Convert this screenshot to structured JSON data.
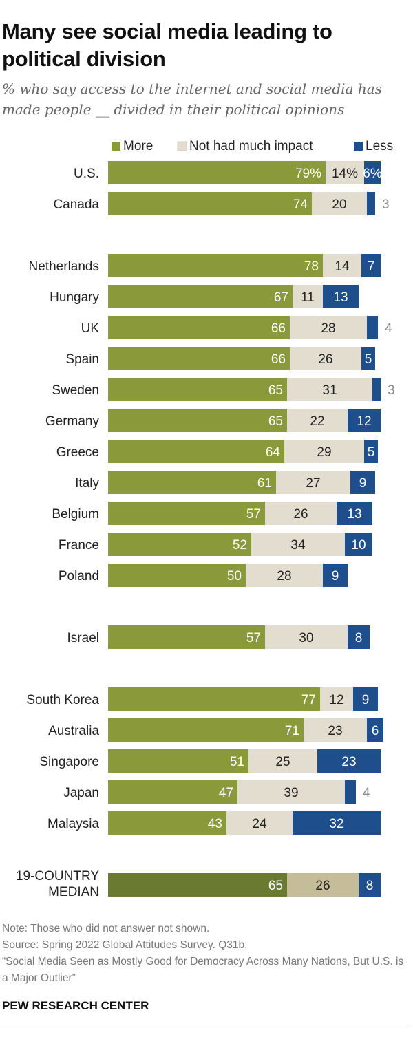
{
  "title": "Many see social media leading to political division",
  "subtitle": "% who say access to the internet and social media has made people __ divided in their political opinions",
  "chart_data": {
    "type": "bar",
    "orientation": "horizontal",
    "stacked": true,
    "xlim": [
      0,
      100
    ],
    "legend": {
      "position": "top",
      "entries": [
        "More",
        "Not had much impact",
        "Less"
      ]
    },
    "series": [
      {
        "name": "More",
        "color": "#8a9a3b"
      },
      {
        "name": "Not had much impact",
        "color": "#e3ddd0"
      },
      {
        "name": "Less",
        "color": "#1f4e8c"
      }
    ],
    "median_colors": [
      "#6b7a31",
      "#c5bd9a",
      "#1f4e8c"
    ],
    "groups": [
      [
        {
          "label": "U.S.",
          "values": [
            79,
            14,
            6
          ],
          "value_labels": [
            "79%",
            "14%",
            "6%"
          ]
        },
        {
          "label": "Canada",
          "values": [
            74,
            20,
            3
          ],
          "value_labels": [
            "74",
            "20",
            "3"
          ]
        }
      ],
      [
        {
          "label": "Netherlands",
          "values": [
            78,
            14,
            7
          ],
          "value_labels": [
            "78",
            "14",
            "7"
          ]
        },
        {
          "label": "Hungary",
          "values": [
            67,
            11,
            13
          ],
          "value_labels": [
            "67",
            "11",
            "13"
          ]
        },
        {
          "label": "UK",
          "values": [
            66,
            28,
            4
          ],
          "value_labels": [
            "66",
            "28",
            "4"
          ]
        },
        {
          "label": "Spain",
          "values": [
            66,
            26,
            5
          ],
          "value_labels": [
            "66",
            "26",
            "5"
          ]
        },
        {
          "label": "Sweden",
          "values": [
            65,
            31,
            3
          ],
          "value_labels": [
            "65",
            "31",
            "3"
          ]
        },
        {
          "label": "Germany",
          "values": [
            65,
            22,
            12
          ],
          "value_labels": [
            "65",
            "22",
            "12"
          ]
        },
        {
          "label": "Greece",
          "values": [
            64,
            29,
            5
          ],
          "value_labels": [
            "64",
            "29",
            "5"
          ]
        },
        {
          "label": "Italy",
          "values": [
            61,
            27,
            9
          ],
          "value_labels": [
            "61",
            "27",
            "9"
          ]
        },
        {
          "label": "Belgium",
          "values": [
            57,
            26,
            13
          ],
          "value_labels": [
            "57",
            "26",
            "13"
          ]
        },
        {
          "label": "France",
          "values": [
            52,
            34,
            10
          ],
          "value_labels": [
            "52",
            "34",
            "10"
          ]
        },
        {
          "label": "Poland",
          "values": [
            50,
            28,
            9
          ],
          "value_labels": [
            "50",
            "28",
            "9"
          ]
        }
      ],
      [
        {
          "label": "Israel",
          "values": [
            57,
            30,
            8
          ],
          "value_labels": [
            "57",
            "30",
            "8"
          ]
        }
      ],
      [
        {
          "label": "South Korea",
          "values": [
            77,
            12,
            9
          ],
          "value_labels": [
            "77",
            "12",
            "9"
          ]
        },
        {
          "label": "Australia",
          "values": [
            71,
            23,
            6
          ],
          "value_labels": [
            "71",
            "23",
            "6"
          ]
        },
        {
          "label": "Singapore",
          "values": [
            51,
            25,
            23
          ],
          "value_labels": [
            "51",
            "25",
            "23"
          ]
        },
        {
          "label": "Japan",
          "values": [
            47,
            39,
            4
          ],
          "value_labels": [
            "47",
            "39",
            "4"
          ]
        },
        {
          "label": "Malaysia",
          "values": [
            43,
            24,
            32
          ],
          "value_labels": [
            "43",
            "24",
            "32"
          ]
        }
      ],
      [
        {
          "label": "19-COUNTRY MEDIAN",
          "label_lines": [
            "19-COUNTRY",
            "MEDIAN"
          ],
          "values": [
            65,
            26,
            8
          ],
          "value_labels": [
            "65",
            "26",
            "8"
          ],
          "median": true
        }
      ]
    ]
  },
  "footer": {
    "note": "Note: Those who did not answer not shown.",
    "source": "Source: Spring 2022 Global Attitudes Survey. Q31b.",
    "citation": "“Social Media Seen as Mostly Good for Democracy Across Many Nations, But U.S. is a Major Outlier”",
    "brand": "PEW RESEARCH CENTER"
  }
}
